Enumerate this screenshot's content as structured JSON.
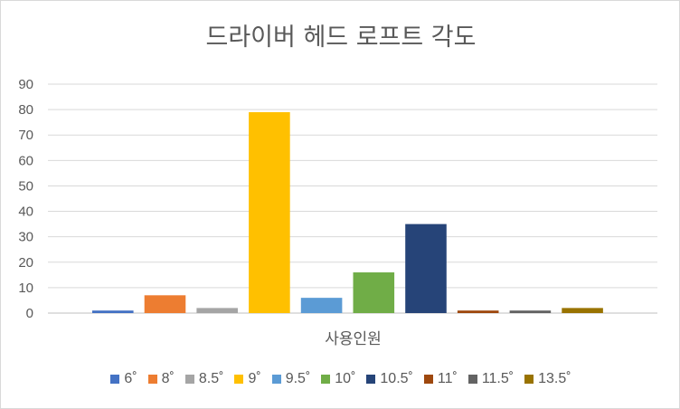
{
  "chart_data": {
    "type": "bar",
    "title": "드라이버 헤드 로프트 각도",
    "categories": [
      "사용인원"
    ],
    "ylim": [
      0,
      90
    ],
    "yticks": [
      0,
      10,
      20,
      30,
      40,
      50,
      60,
      70,
      80,
      90
    ],
    "grid": true,
    "legend_position": "bottom",
    "series": [
      {
        "name": "6˚",
        "values": [
          1
        ],
        "color": "#4472C4"
      },
      {
        "name": "8˚",
        "values": [
          7
        ],
        "color": "#ED7D31"
      },
      {
        "name": "8.5˚",
        "values": [
          2
        ],
        "color": "#A5A5A5"
      },
      {
        "name": "9˚",
        "values": [
          79
        ],
        "color": "#FFC000"
      },
      {
        "name": "9.5˚",
        "values": [
          6
        ],
        "color": "#5B9BD5"
      },
      {
        "name": "10˚",
        "values": [
          16
        ],
        "color": "#70AD47"
      },
      {
        "name": "10.5˚",
        "values": [
          35
        ],
        "color": "#264478"
      },
      {
        "name": "11˚",
        "values": [
          1
        ],
        "color": "#9E480E"
      },
      {
        "name": "11.5˚",
        "values": [
          1
        ],
        "color": "#636363"
      },
      {
        "name": "13.5˚",
        "values": [
          2
        ],
        "color": "#997300"
      }
    ]
  }
}
